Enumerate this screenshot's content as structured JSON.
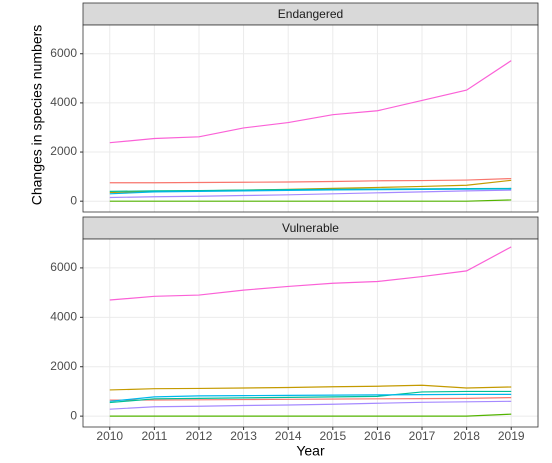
{
  "chart_data": [
    {
      "type": "line",
      "title": "Endangered",
      "ylabel": "Changes in species numbers",
      "x": [
        2010,
        2011,
        2012,
        2013,
        2014,
        2015,
        2016,
        2017,
        2018,
        2019
      ],
      "xlim": [
        2009.4,
        2019.6
      ],
      "xticks": [
        2010,
        2011,
        2012,
        2013,
        2014,
        2015,
        2016,
        2017,
        2018,
        2019
      ],
      "ylim": [
        -440,
        7170
      ],
      "yticks": [
        0,
        2000,
        4000,
        6000
      ],
      "grid": true,
      "series": [
        {
          "color": "#F8766D",
          "values": [
            750,
            750,
            760,
            770,
            780,
            800,
            830,
            840,
            860,
            920
          ]
        },
        {
          "color": "#C49A00",
          "values": [
            350,
            400,
            420,
            450,
            480,
            520,
            560,
            600,
            650,
            850
          ]
        },
        {
          "color": "#53B400",
          "values": [
            0,
            0,
            0,
            0,
            0,
            0,
            0,
            0,
            0,
            50
          ]
        },
        {
          "color": "#00C094",
          "values": [
            400,
            420,
            430,
            450,
            470,
            480,
            490,
            500,
            510,
            520
          ]
        },
        {
          "color": "#00B6EB",
          "values": [
            300,
            380,
            400,
            420,
            440,
            460,
            470,
            480,
            490,
            500
          ]
        },
        {
          "color": "#A58AFF",
          "values": [
            150,
            180,
            200,
            230,
            260,
            300,
            340,
            380,
            420,
            450
          ]
        },
        {
          "color": "#FB61D7",
          "values": [
            2380,
            2550,
            2620,
            2980,
            3200,
            3520,
            3680,
            4100,
            4520,
            5720
          ]
        }
      ]
    },
    {
      "type": "line",
      "title": "Vulnerable",
      "xlabel": "Year",
      "x": [
        2010,
        2011,
        2012,
        2013,
        2014,
        2015,
        2016,
        2017,
        2018,
        2019
      ],
      "xlim": [
        2009.4,
        2019.6
      ],
      "xticks": [
        2010,
        2011,
        2012,
        2013,
        2014,
        2015,
        2016,
        2017,
        2018,
        2019
      ],
      "ylim": [
        -440,
        7170
      ],
      "yticks": [
        0,
        2000,
        4000,
        6000
      ],
      "grid": true,
      "series": [
        {
          "color": "#F8766D",
          "values": [
            650,
            650,
            660,
            670,
            680,
            690,
            700,
            710,
            720,
            750
          ]
        },
        {
          "color": "#C49A00",
          "values": [
            1060,
            1110,
            1120,
            1140,
            1160,
            1190,
            1210,
            1250,
            1140,
            1180
          ]
        },
        {
          "color": "#53B400",
          "values": [
            0,
            0,
            0,
            0,
            0,
            0,
            0,
            0,
            0,
            80
          ]
        },
        {
          "color": "#00C094",
          "values": [
            550,
            700,
            720,
            740,
            760,
            780,
            800,
            980,
            1000,
            1000
          ]
        },
        {
          "color": "#00B6EB",
          "values": [
            600,
            780,
            820,
            830,
            840,
            850,
            860,
            870,
            880,
            880
          ]
        },
        {
          "color": "#A58AFF",
          "values": [
            280,
            380,
            400,
            430,
            450,
            480,
            520,
            560,
            580,
            600
          ]
        },
        {
          "color": "#FB61D7",
          "values": [
            4700,
            4850,
            4900,
            5100,
            5250,
            5380,
            5450,
            5650,
            5880,
            6850
          ]
        }
      ]
    }
  ]
}
